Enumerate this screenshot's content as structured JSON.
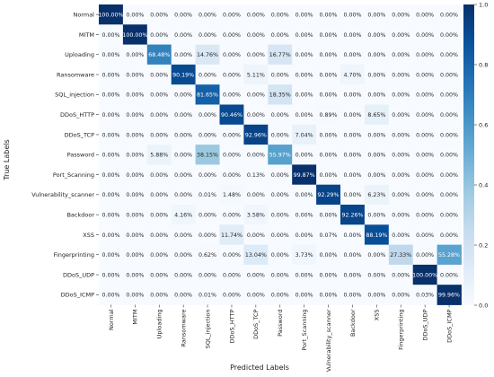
{
  "chart_data": {
    "type": "heatmap",
    "title": "",
    "xlabel": "Predicted Labels",
    "ylabel": "True Labels",
    "rows": [
      "Normal",
      "MITM",
      "Uploading",
      "Ransomware",
      "SQL_injection",
      "DDoS_HTTP",
      "DDoS_TCP",
      "Password",
      "Port_Scanning",
      "Vulnerability_scanner",
      "Backdoor",
      "XSS",
      "Fingerprinting",
      "DDoS_UDP",
      "DDoS_ICMP"
    ],
    "cols": [
      "Normal",
      "MITM",
      "Uploading",
      "Ransomware",
      "SQL_injection",
      "DDoS_HTTP",
      "DDoS_TCP",
      "Password",
      "Port_Scanning",
      "Vulnerability_scanner",
      "Backdoor",
      "XSS",
      "Fingerprinting",
      "DDoS_UDP",
      "DDoS_ICMP"
    ],
    "values": [
      [
        1.0,
        0,
        0,
        0,
        0,
        0,
        0,
        0,
        0,
        0,
        0,
        0,
        0,
        0,
        0
      ],
      [
        0,
        1.0,
        0,
        0,
        0,
        0,
        0,
        0,
        0,
        0,
        0,
        0,
        0,
        0,
        0
      ],
      [
        0,
        0,
        0.6848,
        0,
        0.1476,
        0,
        0,
        0.1677,
        0,
        0,
        0,
        0,
        0,
        0,
        0
      ],
      [
        0,
        0,
        0,
        0.9019,
        0,
        0,
        0.0511,
        0,
        0,
        0,
        0.047,
        0,
        0,
        0,
        0
      ],
      [
        0,
        0,
        0,
        0,
        0.8165,
        0,
        0,
        0.1835,
        0,
        0,
        0,
        0,
        0,
        0,
        0
      ],
      [
        0,
        0,
        0,
        0,
        0,
        0.9046,
        0,
        0,
        0,
        0.0089,
        0,
        0.0865,
        0,
        0,
        0
      ],
      [
        0,
        0,
        0,
        0,
        0,
        0,
        0.9296,
        0,
        0.0704,
        0,
        0,
        0,
        0,
        0,
        0
      ],
      [
        0,
        0,
        0.0588,
        0,
        0.3815,
        0,
        0,
        0.5597,
        0,
        0,
        0,
        0,
        0,
        0,
        0
      ],
      [
        0,
        0,
        0,
        0,
        0,
        0,
        0.0013,
        0,
        0.9987,
        0,
        0,
        0,
        0,
        0,
        0
      ],
      [
        0,
        0,
        0,
        0,
        0.0001,
        0.0148,
        0,
        0,
        0,
        0.9229,
        0,
        0.0623,
        0,
        0,
        0
      ],
      [
        0,
        0,
        0,
        0.0416,
        0,
        0,
        0.0358,
        0,
        0,
        0,
        0.9226,
        0,
        0,
        0,
        0
      ],
      [
        0,
        0,
        0,
        0,
        0,
        0.1174,
        0,
        0,
        0,
        0.0007,
        0,
        0.8819,
        0,
        0,
        0
      ],
      [
        0,
        0,
        0,
        0,
        0.0062,
        0,
        0.1304,
        0,
        0.0373,
        0,
        0,
        0,
        0.2733,
        0,
        0.5528
      ],
      [
        0,
        0,
        0,
        0,
        0,
        0,
        0,
        0,
        0,
        0,
        0,
        0,
        0,
        1.0,
        0
      ],
      [
        0,
        0,
        0,
        0,
        0.0001,
        0,
        0,
        0,
        0,
        0,
        0,
        0,
        0,
        0.0003,
        0.9996
      ]
    ],
    "cell_labels": [
      [
        "100.00%",
        "0.00%",
        "0.00%",
        "0.00%",
        "0.00%",
        "0.00%",
        "0.00%",
        "0.00%",
        "0.00%",
        "0.00%",
        "0.00%",
        "0.00%",
        "0.00%",
        "0.00%",
        "0.00%"
      ],
      [
        "0.00%",
        "100.00%",
        "0.00%",
        "0.00%",
        "0.00%",
        "0.00%",
        "0.00%",
        "0.00%",
        "0.00%",
        "0.00%",
        "0.00%",
        "0.00%",
        "0.00%",
        "0.00%",
        "0.00%"
      ],
      [
        "0.00%",
        "0.00%",
        "68.48%",
        "0.00%",
        "14.76%",
        "0.00%",
        "0.00%",
        "16.77%",
        "0.00%",
        "0.00%",
        "0.00%",
        "0.00%",
        "0.00%",
        "0.00%",
        "0.00%"
      ],
      [
        "0.00%",
        "0.00%",
        "0.00%",
        "90.19%",
        "0.00%",
        "0.00%",
        "5.11%",
        "0.00%",
        "0.00%",
        "0.00%",
        "4.70%",
        "0.00%",
        "0.00%",
        "0.00%",
        "0.00%"
      ],
      [
        "0.00%",
        "0.00%",
        "0.00%",
        "0.00%",
        "81.65%",
        "0.00%",
        "0.00%",
        "18.35%",
        "0.00%",
        "0.00%",
        "0.00%",
        "0.00%",
        "0.00%",
        "0.00%",
        "0.00%"
      ],
      [
        "0.00%",
        "0.00%",
        "0.00%",
        "0.00%",
        "0.00%",
        "90.46%",
        "0.00%",
        "0.00%",
        "0.00%",
        "0.89%",
        "0.00%",
        "8.65%",
        "0.00%",
        "0.00%",
        "0.00%"
      ],
      [
        "0.00%",
        "0.00%",
        "0.00%",
        "0.00%",
        "0.00%",
        "0.00%",
        "92.96%",
        "0.00%",
        "7.04%",
        "0.00%",
        "0.00%",
        "0.00%",
        "0.00%",
        "0.00%",
        "0.00%"
      ],
      [
        "0.00%",
        "0.00%",
        "5.88%",
        "0.00%",
        "38.15%",
        "0.00%",
        "0.00%",
        "55.97%",
        "0.00%",
        "0.00%",
        "0.00%",
        "0.00%",
        "0.00%",
        "0.00%",
        "0.00%"
      ],
      [
        "0.00%",
        "0.00%",
        "0.00%",
        "0.00%",
        "0.00%",
        "0.00%",
        "0.13%",
        "0.00%",
        "99.87%",
        "0.00%",
        "0.00%",
        "0.00%",
        "0.00%",
        "0.00%",
        "0.00%"
      ],
      [
        "0.00%",
        "0.00%",
        "0.00%",
        "0.00%",
        "0.01%",
        "1.48%",
        "0.00%",
        "0.00%",
        "0.00%",
        "92.29%",
        "0.00%",
        "6.23%",
        "0.00%",
        "0.00%",
        "0.00%"
      ],
      [
        "0.00%",
        "0.00%",
        "0.00%",
        "4.16%",
        "0.00%",
        "0.00%",
        "3.58%",
        "0.00%",
        "0.00%",
        "0.00%",
        "92.26%",
        "0.00%",
        "0.00%",
        "0.00%",
        "0.00%"
      ],
      [
        "0.00%",
        "0.00%",
        "0.00%",
        "0.00%",
        "0.00%",
        "11.74%",
        "0.00%",
        "0.00%",
        "0.00%",
        "0.07%",
        "0.00%",
        "88.19%",
        "0.00%",
        "0.00%",
        "0.00%"
      ],
      [
        "0.00%",
        "0.00%",
        "0.00%",
        "0.00%",
        "0.62%",
        "0.00%",
        "13.04%",
        "0.00%",
        "3.73%",
        "0.00%",
        "0.00%",
        "0.00%",
        "27.33%",
        "0.00%",
        "55.28%"
      ],
      [
        "0.00%",
        "0.00%",
        "0.00%",
        "0.00%",
        "0.00%",
        "0.00%",
        "0.00%",
        "0.00%",
        "0.00%",
        "0.00%",
        "0.00%",
        "0.00%",
        "0.00%",
        "100.00%",
        "0.00%"
      ],
      [
        "0.00%",
        "0.00%",
        "0.00%",
        "0.00%",
        "0.01%",
        "0.00%",
        "0.00%",
        "0.00%",
        "0.00%",
        "0.00%",
        "0.00%",
        "0.00%",
        "0.00%",
        "0.03%",
        "99.96%"
      ]
    ],
    "colorbar": {
      "range": [
        0,
        1
      ],
      "ticks": [
        0.0,
        0.2,
        0.4,
        0.6,
        0.8,
        1.0
      ],
      "tick_labels": [
        "0.0",
        "0.2",
        "0.4",
        "0.6",
        "0.8",
        "1.0"
      ],
      "colormap": [
        "#f7fbff",
        "#deebf7",
        "#c6dbef",
        "#9ecae1",
        "#6baed6",
        "#4292c6",
        "#2171b5",
        "#08519c",
        "#08306b"
      ]
    },
    "grid": false,
    "legend": "colorbar-right"
  }
}
